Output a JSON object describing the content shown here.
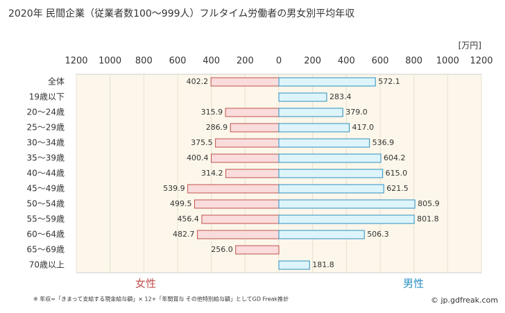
{
  "chart_data": {
    "type": "bar",
    "title": "2020年 民間企業（従業者数100〜999人）フルタイム労働者の男女別平均年収",
    "unit": "[万円]",
    "categories": [
      "全体",
      "19歳以下",
      "20〜24歳",
      "25〜29歳",
      "30〜34歳",
      "35〜39歳",
      "40〜44歳",
      "45〜49歳",
      "50〜54歳",
      "55〜59歳",
      "60〜64歳",
      "65〜69歳",
      "70歳以上"
    ],
    "series": [
      {
        "name": "女性",
        "color": "#c0504d",
        "fill": "#fadcdc",
        "values": [
          402.2,
          null,
          315.9,
          286.9,
          375.5,
          400.4,
          314.2,
          539.9,
          499.5,
          456.4,
          482.7,
          256.0,
          null
        ],
        "value_labels": [
          "402.2",
          null,
          "315.9",
          "286.9",
          "375.5",
          "400.4",
          "314.2",
          "539.9",
          "499.5",
          "456.4",
          "482.7",
          "256.0",
          null
        ]
      },
      {
        "name": "男性",
        "color": "#2a8fc0",
        "fill": "#def4fb",
        "values": [
          572.1,
          283.4,
          379.0,
          417.0,
          536.9,
          604.2,
          615.0,
          621.5,
          805.9,
          801.8,
          506.3,
          null,
          181.8
        ],
        "value_labels": [
          "572.1",
          "283.4",
          "379.0",
          "417.0",
          "536.9",
          "604.2",
          "615.0",
          "621.5",
          "805.9",
          "801.8",
          "506.3",
          null,
          "181.8"
        ]
      }
    ],
    "xlim": [
      0,
      1200
    ],
    "xticks": [
      0,
      200,
      400,
      600,
      800,
      1000,
      1200
    ],
    "grid": true,
    "footnote": "※ 年収=「きまって支給する現金給与額」× 12+「年間賞与 その他特別給与額」としてGD Freak推計",
    "credit": "© jp.gdfreak.com"
  }
}
